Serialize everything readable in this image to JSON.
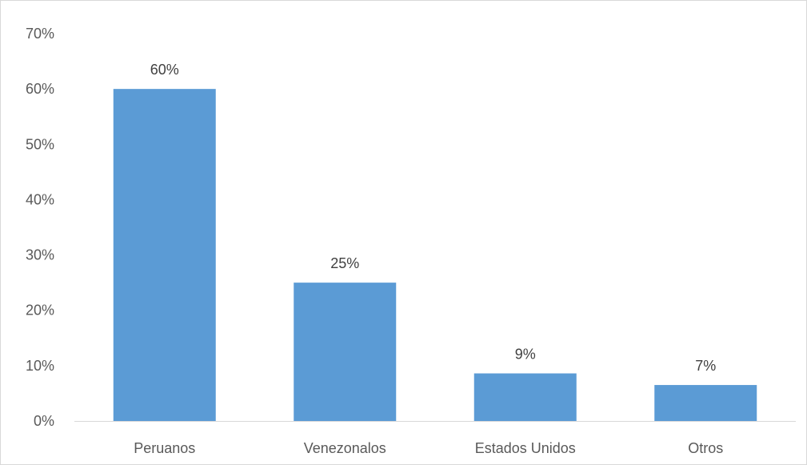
{
  "chart_data": {
    "type": "bar",
    "categories": [
      "Peruanos",
      "Venezonalos",
      "Estados Unidos",
      "Otros"
    ],
    "values": [
      60,
      25,
      8.6,
      6.5
    ],
    "data_labels": [
      "60%",
      "25%",
      "9%",
      "7%"
    ],
    "title": "",
    "xlabel": "",
    "ylabel": "",
    "ylim": [
      0,
      70
    ],
    "yticks": [
      0,
      10,
      20,
      30,
      40,
      50,
      60,
      70
    ],
    "ytick_labels": [
      "0%",
      "10%",
      "20%",
      "30%",
      "40%",
      "50%",
      "60%",
      "70%"
    ],
    "grid": false,
    "legend": "none",
    "bar_color": "#5b9bd5",
    "axis_color": "#d9d9d9"
  }
}
